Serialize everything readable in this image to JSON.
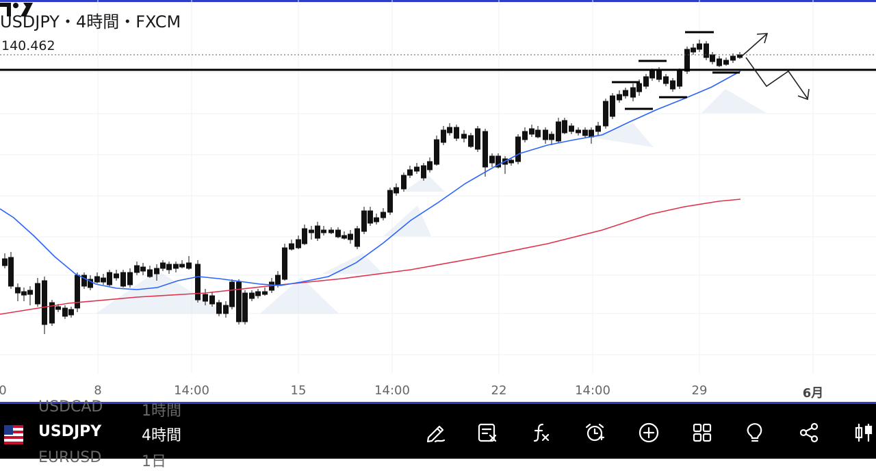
{
  "header": {
    "title": "USDJPY・4時間・FXCM",
    "current_price": "140.462"
  },
  "x_axis": {
    "labels": [
      "0",
      "8",
      "14:00",
      "15",
      "14:00",
      "22",
      "14:00",
      "29",
      "6月"
    ]
  },
  "toolbar": {
    "symbol_prev": "USDCAD",
    "timeframe_prev": "1時間",
    "symbol": "USDJPY",
    "timeframe": "4時間",
    "symbol_next": "EURUSD",
    "timeframe_next": "1日",
    "tools": [
      "pencil-icon",
      "notes-icon",
      "indicator-icon",
      "alert-icon",
      "plus-circle-icon",
      "grid-icon",
      "lightbulb-icon",
      "share-icon",
      "candles-icon"
    ]
  },
  "colors": {
    "accent": "#2e3ec9",
    "ma_short": "#2962ff",
    "ma_long": "#e0304a",
    "toolbar_bg": "#000000"
  },
  "chart_data": {
    "type": "candlestick",
    "instrument": "USDJPY",
    "timeframe": "4時間",
    "source": "FXCM",
    "last_price": 140.462,
    "overlays": [
      "short moving average (blue)",
      "long moving average (red)",
      "horizontal support/resistance line",
      "projected path arrows"
    ]
  }
}
